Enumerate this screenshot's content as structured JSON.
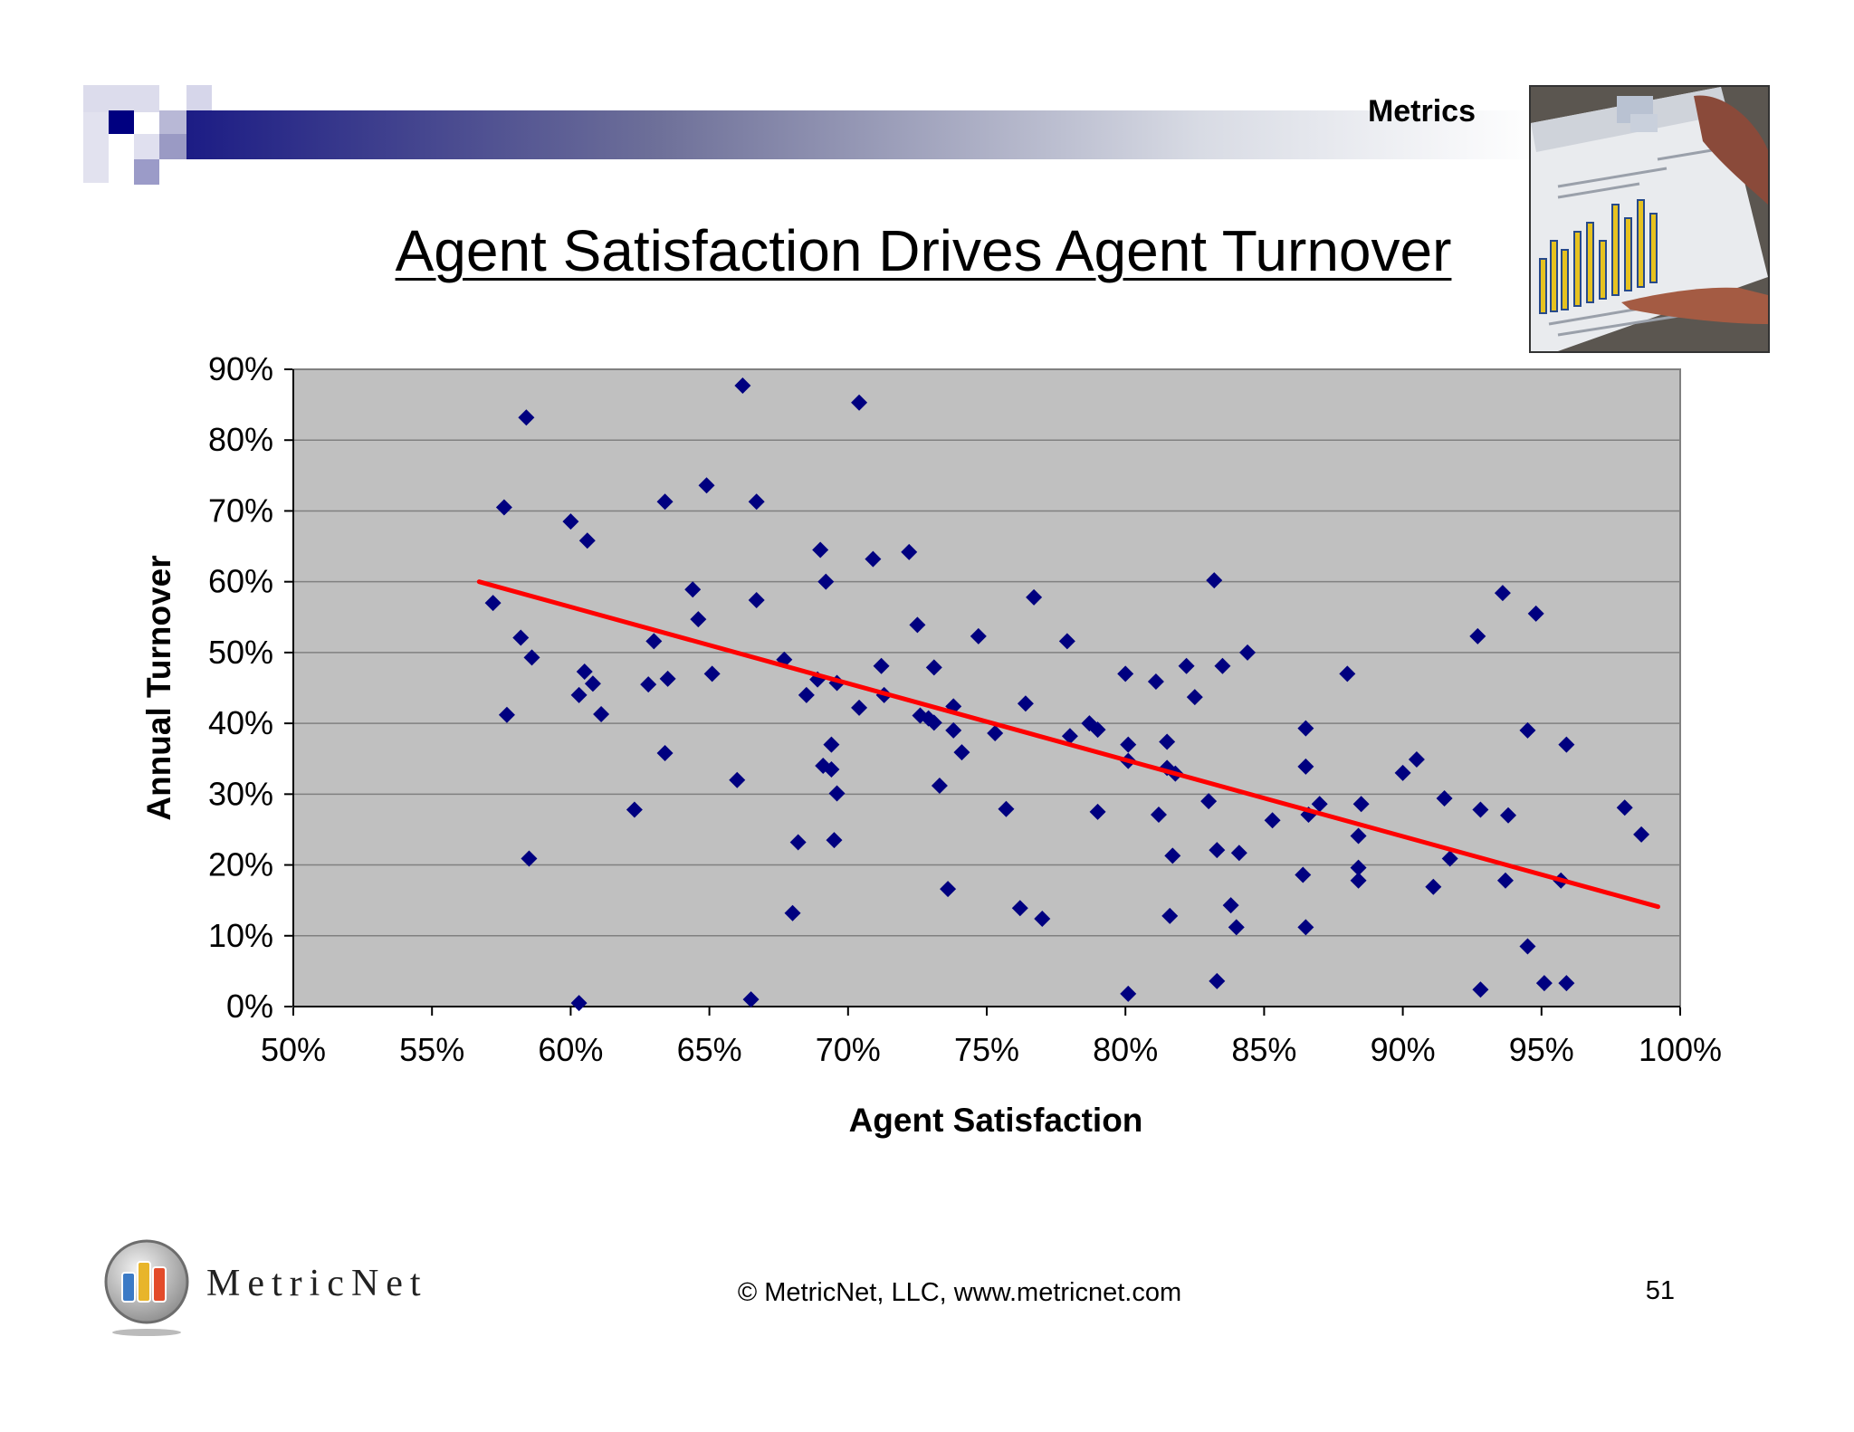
{
  "header": {
    "section_label": "Metrics"
  },
  "slide": {
    "title": "Agent Satisfaction Drives Agent Turnover"
  },
  "chart_data": {
    "type": "scatter",
    "title": "",
    "xlabel": "Agent Satisfaction",
    "ylabel": "Annual Turnover",
    "xlim": [
      0.5,
      1.0
    ],
    "ylim": [
      0.0,
      0.9
    ],
    "x_ticks": [
      "50%",
      "55%",
      "60%",
      "65%",
      "70%",
      "75%",
      "80%",
      "85%",
      "90%",
      "95%",
      "100%"
    ],
    "y_ticks": [
      "0%",
      "10%",
      "20%",
      "30%",
      "40%",
      "50%",
      "60%",
      "70%",
      "80%",
      "90%"
    ],
    "grid": true,
    "colors": {
      "plot_background": "#c0c0c0",
      "gridline": "#808080",
      "marker": "#000080",
      "trendline": "#ff0000"
    },
    "trendline": {
      "x": [
        0.567,
        0.992
      ],
      "y": [
        0.6,
        0.141
      ]
    },
    "series": [
      {
        "marker": "diamond",
        "points": [
          [
            0.572,
            0.57
          ],
          [
            0.576,
            0.705
          ],
          [
            0.577,
            0.412
          ],
          [
            0.582,
            0.521
          ],
          [
            0.584,
            0.832
          ],
          [
            0.585,
            0.209
          ],
          [
            0.586,
            0.493
          ],
          [
            0.6,
            0.685
          ],
          [
            0.603,
            0.44
          ],
          [
            0.603,
            0.005
          ],
          [
            0.605,
            0.473
          ],
          [
            0.606,
            0.658
          ],
          [
            0.608,
            0.456
          ],
          [
            0.611,
            0.413
          ],
          [
            0.623,
            0.278
          ],
          [
            0.628,
            0.455
          ],
          [
            0.63,
            0.516
          ],
          [
            0.634,
            0.713
          ],
          [
            0.634,
            0.358
          ],
          [
            0.635,
            0.463
          ],
          [
            0.644,
            0.589
          ],
          [
            0.646,
            0.547
          ],
          [
            0.649,
            0.736
          ],
          [
            0.651,
            0.47
          ],
          [
            0.66,
            0.32
          ],
          [
            0.662,
            0.877
          ],
          [
            0.665,
            0.01
          ],
          [
            0.667,
            0.713
          ],
          [
            0.667,
            0.574
          ],
          [
            0.677,
            0.49
          ],
          [
            0.68,
            0.132
          ],
          [
            0.682,
            0.232
          ],
          [
            0.685,
            0.44
          ],
          [
            0.689,
            0.462
          ],
          [
            0.69,
            0.645
          ],
          [
            0.691,
            0.34
          ],
          [
            0.692,
            0.6
          ],
          [
            0.694,
            0.335
          ],
          [
            0.694,
            0.37
          ],
          [
            0.695,
            0.235
          ],
          [
            0.696,
            0.457
          ],
          [
            0.696,
            0.301
          ],
          [
            0.704,
            0.422
          ],
          [
            0.704,
            0.853
          ],
          [
            0.709,
            0.632
          ],
          [
            0.712,
            0.481
          ],
          [
            0.713,
            0.44
          ],
          [
            0.722,
            0.642
          ],
          [
            0.725,
            0.539
          ],
          [
            0.726,
            0.411
          ],
          [
            0.729,
            0.407
          ],
          [
            0.731,
            0.401
          ],
          [
            0.731,
            0.479
          ],
          [
            0.733,
            0.312
          ],
          [
            0.736,
            0.166
          ],
          [
            0.738,
            0.424
          ],
          [
            0.738,
            0.39
          ],
          [
            0.741,
            0.359
          ],
          [
            0.747,
            0.523
          ],
          [
            0.753,
            0.386
          ],
          [
            0.757,
            0.279
          ],
          [
            0.762,
            0.139
          ],
          [
            0.764,
            0.428
          ],
          [
            0.767,
            0.578
          ],
          [
            0.77,
            0.124
          ],
          [
            0.779,
            0.516
          ],
          [
            0.78,
            0.382
          ],
          [
            0.787,
            0.4
          ],
          [
            0.79,
            0.391
          ],
          [
            0.79,
            0.275
          ],
          [
            0.8,
            0.47
          ],
          [
            0.801,
            0.37
          ],
          [
            0.801,
            0.018
          ],
          [
            0.801,
            0.347
          ],
          [
            0.811,
            0.459
          ],
          [
            0.812,
            0.271
          ],
          [
            0.815,
            0.374
          ],
          [
            0.815,
            0.337
          ],
          [
            0.816,
            0.128
          ],
          [
            0.817,
            0.213
          ],
          [
            0.818,
            0.329
          ],
          [
            0.822,
            0.481
          ],
          [
            0.825,
            0.437
          ],
          [
            0.83,
            0.29
          ],
          [
            0.832,
            0.602
          ],
          [
            0.833,
            0.221
          ],
          [
            0.833,
            0.036
          ],
          [
            0.835,
            0.481
          ],
          [
            0.838,
            0.143
          ],
          [
            0.84,
            0.112
          ],
          [
            0.841,
            0.217
          ],
          [
            0.844,
            0.5
          ],
          [
            0.853,
            0.263
          ],
          [
            0.864,
            0.186
          ],
          [
            0.865,
            0.393
          ],
          [
            0.865,
            0.339
          ],
          [
            0.865,
            0.112
          ],
          [
            0.866,
            0.271
          ],
          [
            0.87,
            0.286
          ],
          [
            0.88,
            0.47
          ],
          [
            0.884,
            0.241
          ],
          [
            0.884,
            0.196
          ],
          [
            0.884,
            0.178
          ],
          [
            0.885,
            0.286
          ],
          [
            0.9,
            0.33
          ],
          [
            0.905,
            0.349
          ],
          [
            0.911,
            0.169
          ],
          [
            0.915,
            0.294
          ],
          [
            0.917,
            0.209
          ],
          [
            0.927,
            0.523
          ],
          [
            0.928,
            0.278
          ],
          [
            0.928,
            0.024
          ],
          [
            0.936,
            0.584
          ],
          [
            0.937,
            0.178
          ],
          [
            0.938,
            0.27
          ],
          [
            0.945,
            0.39
          ],
          [
            0.945,
            0.085
          ],
          [
            0.948,
            0.555
          ],
          [
            0.951,
            0.033
          ],
          [
            0.957,
            0.178
          ],
          [
            0.959,
            0.37
          ],
          [
            0.959,
            0.033
          ],
          [
            0.98,
            0.281
          ],
          [
            0.986,
            0.243
          ]
        ]
      }
    ]
  },
  "footer": {
    "copyright": "© MetricNet, LLC, www.metricnet.com",
    "page_number": "51",
    "logo_text": "MetricNet"
  }
}
